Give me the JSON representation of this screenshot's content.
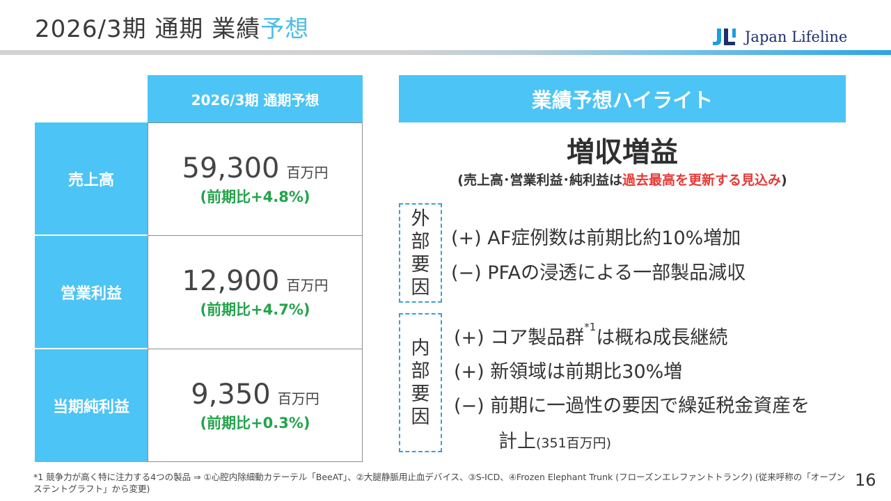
{
  "header": {
    "title_main": "2026/3期 通期 業績",
    "title_accent": "予想",
    "logo_text": "Japan Lifeline",
    "logo_mark": "JLL"
  },
  "table": {
    "column_header": "2026/3期 通期予想",
    "rows": [
      {
        "label": "売上高",
        "value": "59,300",
        "unit": "百万円",
        "yoy": "(前期比+4.8%)"
      },
      {
        "label": "営業利益",
        "value": "12,900",
        "unit": "百万円",
        "yoy": "(前期比+4.7%)"
      },
      {
        "label": "当期純利益",
        "value": "9,350",
        "unit": "百万円",
        "yoy": "(前期比+0.3%)"
      }
    ]
  },
  "highlights": {
    "header": "業績予想ハイライト",
    "main": "増収増益",
    "sub_prefix": "(売上高･営業利益･純利益は",
    "sub_highlight": "過去最高を更新する見込み",
    "sub_suffix": ")",
    "external": {
      "label_chars": [
        "外",
        "部",
        "要",
        "因"
      ],
      "items": [
        "(+) AF症例数は前期比約10%増加",
        "(−) PFAの浸透による一部製品減収"
      ]
    },
    "internal": {
      "label_chars": [
        "内",
        "部",
        "要",
        "因"
      ],
      "item1_pre": "(+) コア製品群",
      "item1_sup": "*1",
      "item1_post": "は概ね成長継続",
      "item2": "(+) 新領域は前期比30%増",
      "item3": "(−) 前期に一過性の要因で繰延税金資産を",
      "item3_cont": "計上",
      "item3_note": "(351百万円)"
    }
  },
  "footnote": "*1 競争力が高く特に注力する4つの製品 ⇒ ①心腔内除細動カテーテル「BeeAT」、②大腿静脈用止血デバイス、③S-ICD、④Frozen Elephant Trunk (フローズンエレファントトランク) (従来呼称の「オープンステントグラフト」から変更)",
  "page_number": "16",
  "colors": {
    "accent_blue": "#4cc4f5",
    "green": "#22a34a",
    "red": "#e53935",
    "logo_blue": "#1d2f6b"
  }
}
